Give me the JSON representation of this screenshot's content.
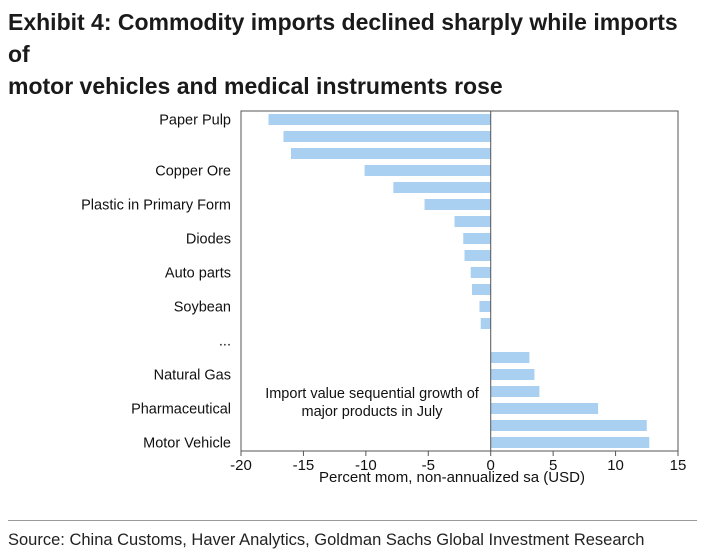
{
  "exhibit": {
    "title_line1": "Exhibit 4: Commodity imports declined sharply while imports of",
    "title_line2": "motor vehicles and medical instruments rose",
    "source": "Source: China Customs, Haver Analytics, Goldman Sachs Global Investment Research"
  },
  "chart_data": {
    "type": "bar",
    "orientation": "horizontal",
    "title": "",
    "annotation": [
      "Import value sequential growth of",
      "major products in July"
    ],
    "xlabel": "Percent mom, non-annualized sa (USD)",
    "ylabel": "",
    "xlim": [
      -20,
      15
    ],
    "xticks": [
      -20,
      -15,
      -10,
      -5,
      0,
      5,
      10,
      15
    ],
    "grid": false,
    "bar_color": "#a9d0f1",
    "categories": [
      "Paper Pulp",
      "",
      "",
      "Copper Ore",
      "",
      "Plastic in Primary Form",
      "",
      "Diodes",
      "",
      "Auto parts",
      "",
      "Soybean",
      "",
      "...",
      "",
      "Natural Gas",
      "",
      "Pharmaceutical",
      "",
      "Motor Vehicle"
    ],
    "values": [
      -17.8,
      -16.6,
      -16.0,
      -10.1,
      -7.8,
      -5.3,
      -2.9,
      -2.2,
      -2.1,
      -1.6,
      -1.5,
      -0.9,
      -0.8,
      null,
      3.1,
      3.5,
      3.9,
      8.6,
      12.5,
      12.7
    ]
  }
}
